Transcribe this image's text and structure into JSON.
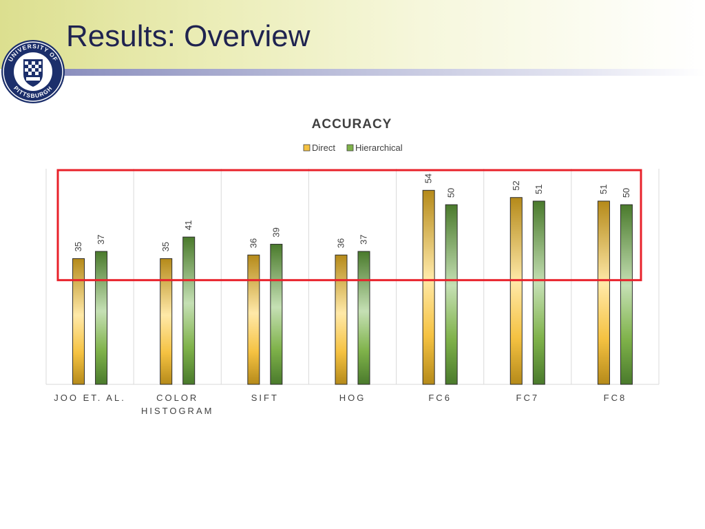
{
  "slide": {
    "title": "Results: Overview",
    "logo_text_top": "UNIVERSITY OF",
    "logo_text_bottom": "PITTSBURGH"
  },
  "colors": {
    "direct_light": "#ffe9a8",
    "direct_mid": "#f5c242",
    "direct_dark": "#b58a1a",
    "hier_light": "#c5e0b4",
    "hier_mid": "#7fb24a",
    "hier_dark": "#4a7a2c",
    "highlight_box": "#e8212a",
    "gridline": "#d9d9d9",
    "text": "#404040"
  },
  "chart_data": {
    "type": "bar",
    "title": "ACCURACY",
    "categories": [
      "JOO ET. AL.",
      "COLOR HISTOGRAM",
      "SIFT",
      "HOG",
      "FC6",
      "FC7",
      "FC8"
    ],
    "category_lines": [
      [
        "JOO ET. AL."
      ],
      [
        "COLOR",
        "HISTOGRAM"
      ],
      [
        "SIFT"
      ],
      [
        "HOG"
      ],
      [
        "FC6"
      ],
      [
        "FC7"
      ],
      [
        "FC8"
      ]
    ],
    "series": [
      {
        "name": "Direct",
        "values": [
          35,
          35,
          36,
          36,
          54,
          52,
          51
        ]
      },
      {
        "name": "Hierarchical",
        "values": [
          37,
          41,
          39,
          37,
          50,
          51,
          50
        ]
      }
    ],
    "ylim": [
      0,
      60
    ],
    "grid": "vertical category dividers",
    "legend": "top-center",
    "data_labels": "rotated above bars",
    "highlight_region": {
      "y_from": 29,
      "y_to": 60
    }
  }
}
